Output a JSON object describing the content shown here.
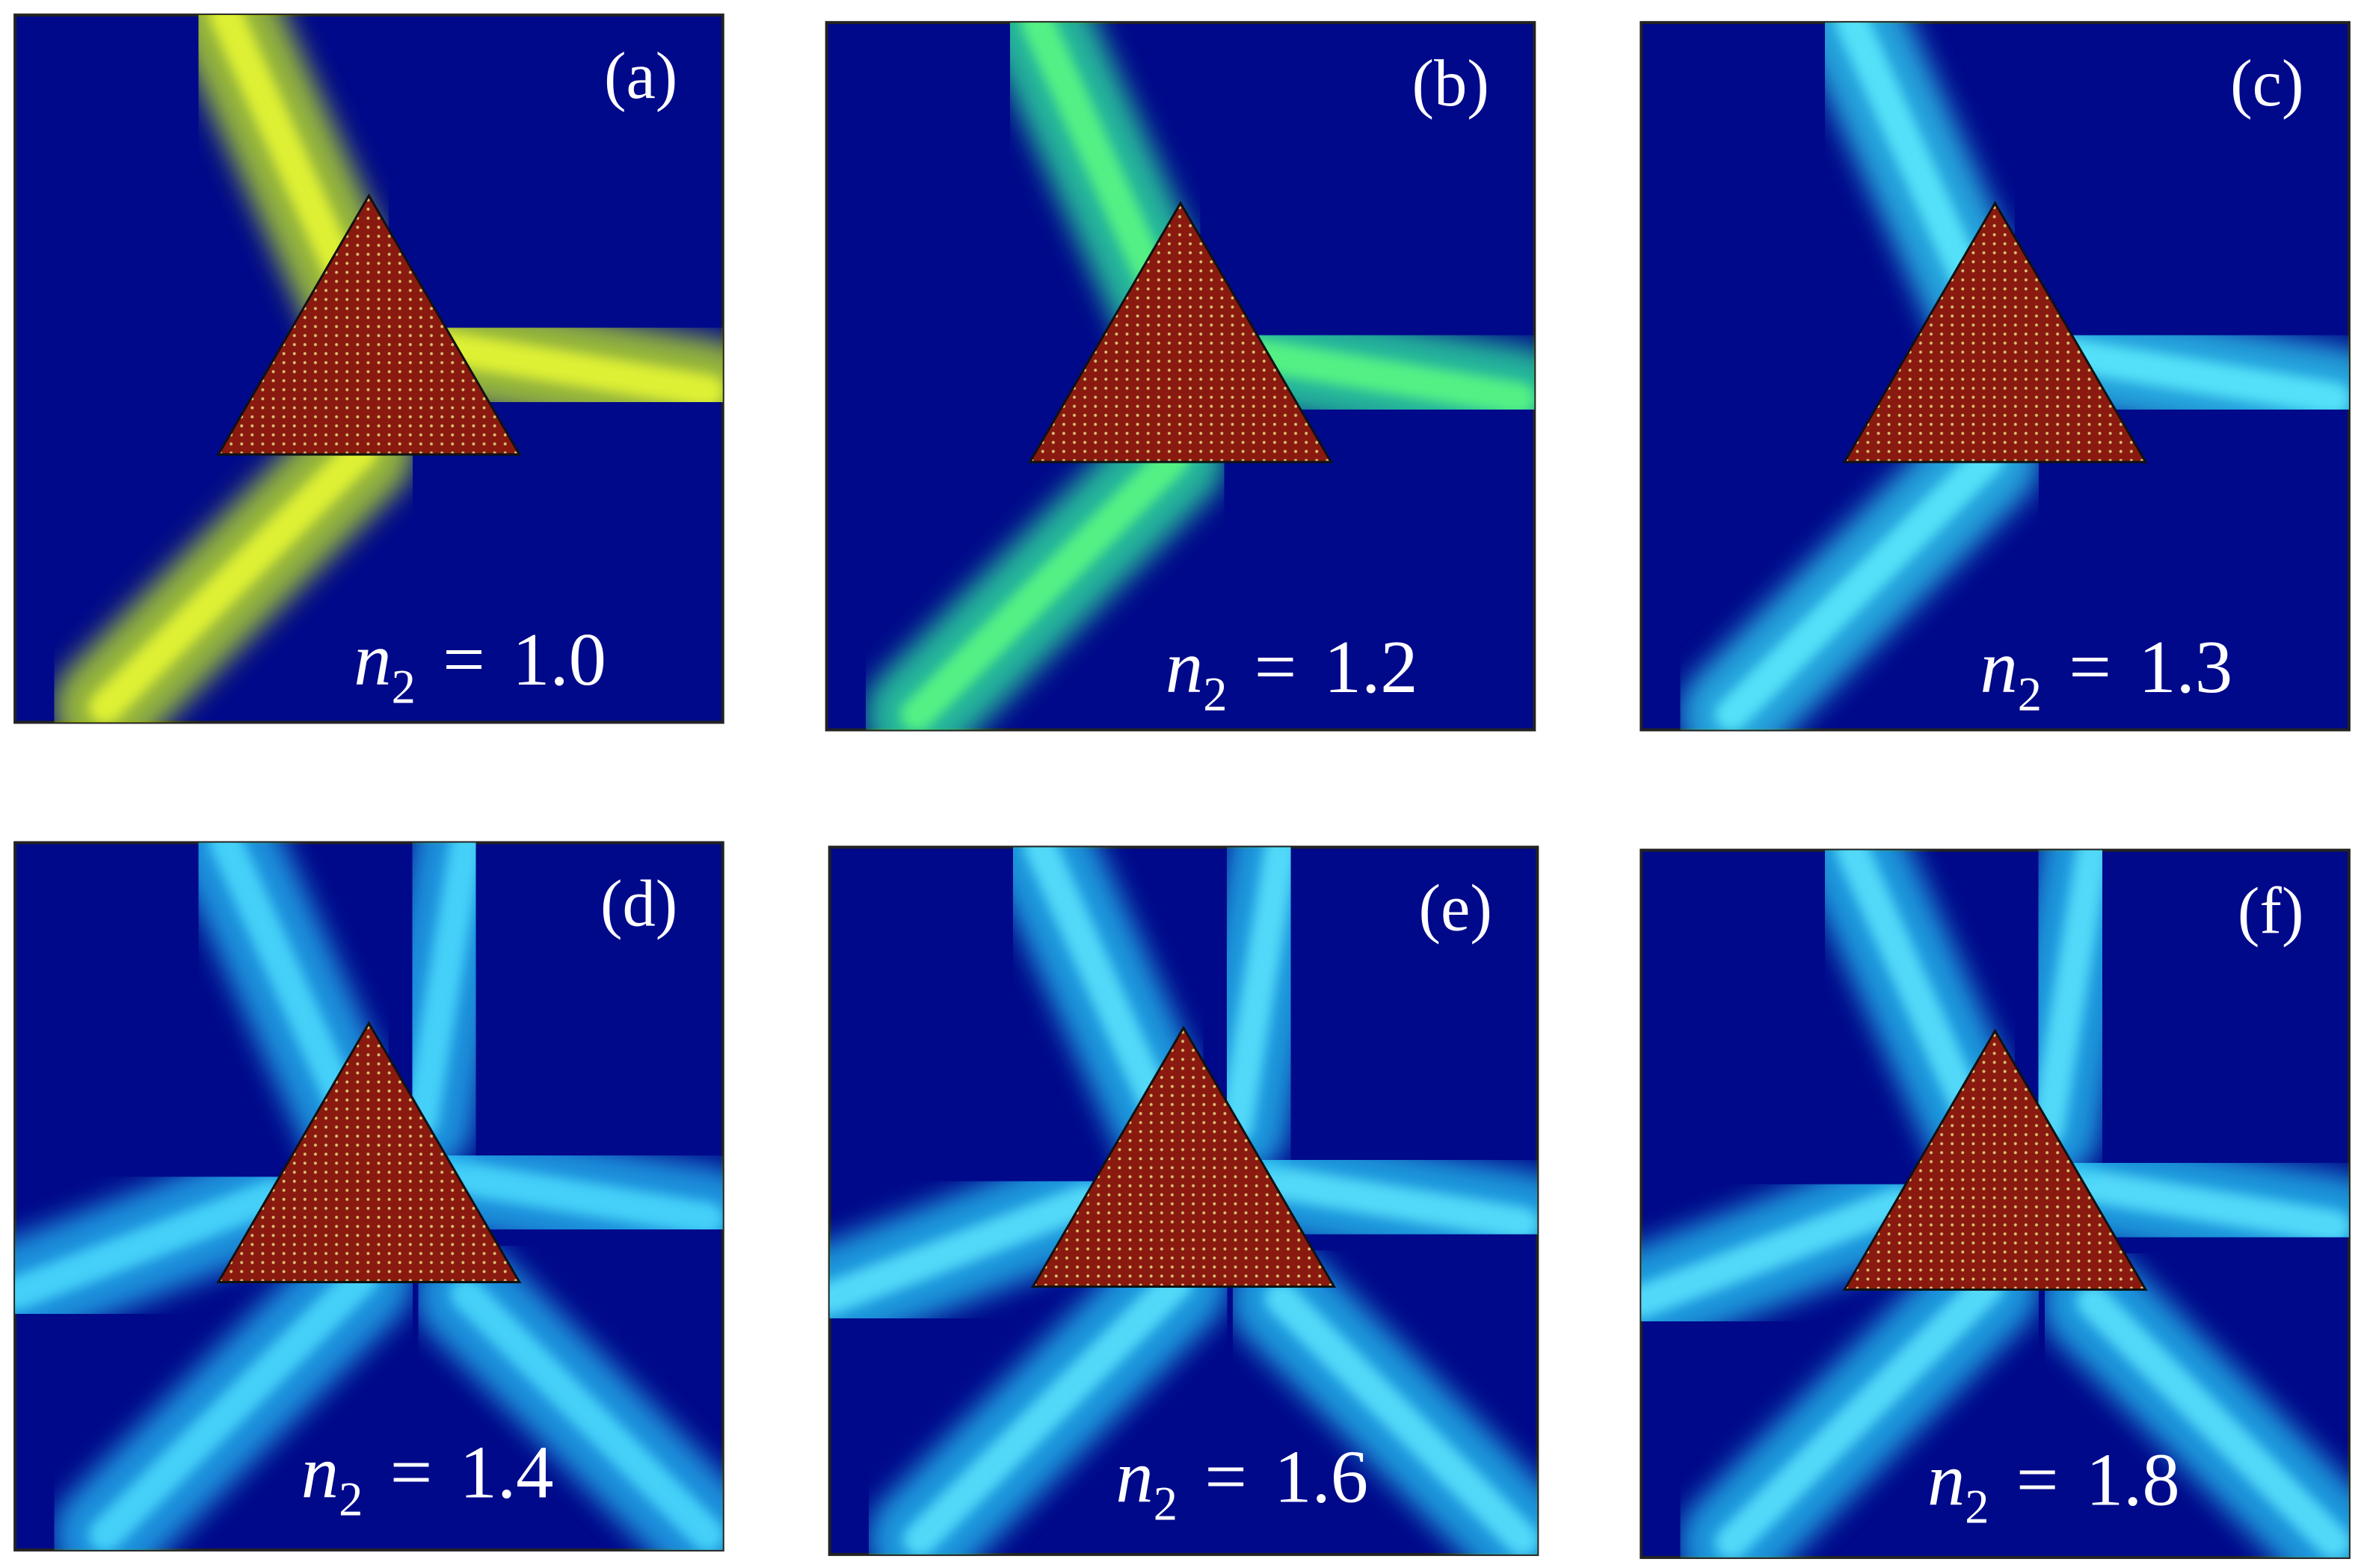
{
  "panels": [
    {
      "label": "(a)",
      "equation": {
        "symbol": "n",
        "subscript": "2",
        "relation": "=",
        "value": "1.0"
      }
    },
    {
      "label": "(b)",
      "equation": {
        "symbol": "n",
        "subscript": "2",
        "relation": "=",
        "value": "1.2"
      }
    },
    {
      "label": "(c)",
      "equation": {
        "symbol": "n",
        "subscript": "2",
        "relation": "=",
        "value": "1.3"
      }
    },
    {
      "label": "(d)",
      "equation": {
        "symbol": "n",
        "subscript": "2",
        "relation": "=",
        "value": "1.4"
      }
    },
    {
      "label": "(e)",
      "equation": {
        "symbol": "n",
        "subscript": "2",
        "relation": "=",
        "value": "1.6"
      }
    },
    {
      "label": "(f)",
      "equation": {
        "symbol": "n",
        "subscript": "2",
        "relation": "=",
        "value": "1.8"
      }
    }
  ]
}
